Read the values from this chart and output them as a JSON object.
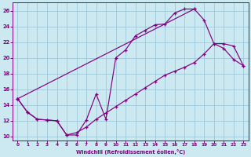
{
  "xlabel": "Windchill (Refroidissement éolien,°C)",
  "bg_color": "#cce8f0",
  "line_color": "#800080",
  "grid_color": "#9ec8d8",
  "xlim": [
    -0.5,
    23.5
  ],
  "ylim": [
    9.5,
    27.0
  ],
  "xticks": [
    0,
    1,
    2,
    3,
    4,
    5,
    6,
    7,
    8,
    9,
    10,
    11,
    12,
    13,
    14,
    15,
    16,
    17,
    18,
    19,
    20,
    21,
    22,
    23
  ],
  "yticks": [
    10,
    12,
    14,
    16,
    18,
    20,
    22,
    24,
    26
  ],
  "line1_x": [
    0,
    1,
    2,
    3,
    4,
    5,
    6,
    7,
    8,
    9,
    10,
    11,
    12,
    13,
    14,
    15,
    16,
    17,
    18
  ],
  "line1_y": [
    14.8,
    13.1,
    12.2,
    12.1,
    12.0,
    10.2,
    10.2,
    12.1,
    15.4,
    12.2,
    20.0,
    21.0,
    22.8,
    23.5,
    24.2,
    24.3,
    25.7,
    26.2,
    26.2
  ],
  "line2_x": [
    0,
    1,
    2,
    3,
    4,
    5,
    6,
    7,
    8,
    9,
    10,
    11,
    12,
    13,
    14,
    15,
    16,
    17,
    18,
    19,
    20,
    21,
    22,
    23
  ],
  "line2_y": [
    14.8,
    13.1,
    12.2,
    12.1,
    12.0,
    10.2,
    10.5,
    11.2,
    12.2,
    13.0,
    13.8,
    14.6,
    15.4,
    16.2,
    17.0,
    17.8,
    18.3,
    18.8,
    19.4,
    20.5,
    21.8,
    21.8,
    21.5,
    19.0
  ],
  "line3_x": [
    0,
    18,
    19,
    20,
    21,
    22,
    23
  ],
  "line3_y": [
    14.8,
    26.2,
    24.8,
    21.8,
    21.2,
    19.8,
    19.0
  ]
}
